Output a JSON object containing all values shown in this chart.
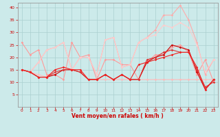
{
  "background_color": "#cceaea",
  "grid_color": "#aacfcf",
  "xlabel": "Vent moyen/en rafales ( km/h )",
  "xlabel_color": "#cc0000",
  "tick_color": "#cc0000",
  "xlim": [
    -0.5,
    23.5
  ],
  "ylim": [
    0,
    42
  ],
  "yticks": [
    5,
    10,
    15,
    20,
    25,
    30,
    35,
    40
  ],
  "xticks": [
    0,
    1,
    2,
    3,
    4,
    5,
    6,
    7,
    8,
    9,
    10,
    11,
    12,
    13,
    14,
    15,
    16,
    17,
    18,
    19,
    20,
    21,
    22,
    23
  ],
  "lines": [
    {
      "x": [
        0,
        1,
        2,
        3,
        4,
        5,
        6,
        7,
        8,
        9,
        10,
        11,
        12,
        13,
        14,
        15,
        16,
        17,
        18,
        19,
        20,
        21,
        22,
        23
      ],
      "y": [
        26,
        21,
        23,
        13,
        13,
        11,
        26,
        20,
        21,
        11,
        19,
        19,
        17,
        17,
        11,
        18,
        21,
        21,
        24,
        25,
        22,
        13,
        19,
        10
      ],
      "color": "#ff9999",
      "linewidth": 0.8
    },
    {
      "x": [
        0,
        1,
        2,
        3,
        4,
        5,
        6,
        7,
        8,
        9,
        10,
        11,
        12,
        13,
        14,
        15,
        16,
        17,
        18,
        19,
        20,
        21,
        22,
        23
      ],
      "y": [
        15,
        14,
        13,
        12,
        15,
        16,
        15,
        15,
        11,
        11,
        11,
        11,
        11,
        11,
        11,
        11,
        11,
        11,
        11,
        11,
        11,
        11,
        11,
        11
      ],
      "color": "#ffbbbb",
      "linewidth": 0.8
    },
    {
      "x": [
        0,
        1,
        2,
        3,
        4,
        5,
        6,
        7,
        8,
        9,
        10,
        11,
        12,
        13,
        14,
        15,
        16,
        17,
        18,
        19,
        20,
        21,
        22,
        23
      ],
      "y": [
        15,
        14,
        18,
        23,
        24,
        26,
        15,
        20,
        20,
        13,
        27,
        28,
        16,
        17,
        26,
        28,
        31,
        37,
        37,
        41,
        35,
        26,
        13,
        19
      ],
      "color": "#ffaaaa",
      "linewidth": 0.8
    },
    {
      "x": [
        0,
        1,
        2,
        3,
        4,
        5,
        6,
        7,
        8,
        9,
        10,
        11,
        12,
        13,
        14,
        15,
        16,
        17,
        18,
        19,
        20,
        21,
        22,
        23
      ],
      "y": [
        15,
        14,
        18,
        23,
        24,
        26,
        15,
        20,
        20,
        13,
        27,
        28,
        16,
        17,
        26,
        28,
        29,
        33,
        32,
        34,
        32,
        25,
        14,
        19
      ],
      "color": "#ffcccc",
      "linewidth": 0.8
    },
    {
      "x": [
        0,
        1,
        2,
        3,
        4,
        5,
        6,
        7,
        8,
        9,
        10,
        11,
        12,
        13,
        14,
        15,
        16,
        17,
        18,
        19,
        20,
        21,
        22,
        23
      ],
      "y": [
        15,
        14,
        12,
        12,
        13,
        15,
        15,
        14,
        11,
        11,
        13,
        11,
        13,
        11,
        11,
        18,
        20,
        21,
        25,
        24,
        23,
        14,
        7,
        11
      ],
      "color": "#cc0000",
      "linewidth": 0.8
    },
    {
      "x": [
        0,
        1,
        2,
        3,
        4,
        5,
        6,
        7,
        8,
        9,
        10,
        11,
        12,
        13,
        14,
        15,
        16,
        17,
        18,
        19,
        20,
        21,
        22,
        23
      ],
      "y": [
        15,
        14,
        12,
        12,
        14,
        15,
        15,
        14,
        11,
        11,
        13,
        11,
        13,
        11,
        11,
        19,
        20,
        22,
        23,
        22,
        22,
        15,
        8,
        10
      ],
      "color": "#dd3333",
      "linewidth": 0.8
    },
    {
      "x": [
        0,
        1,
        2,
        3,
        4,
        5,
        6,
        7,
        8,
        9,
        10,
        11,
        12,
        13,
        14,
        15,
        16,
        17,
        18,
        19,
        20,
        21,
        22,
        23
      ],
      "y": [
        15,
        14,
        12,
        12,
        15,
        16,
        15,
        15,
        11,
        11,
        13,
        11,
        13,
        11,
        17,
        18,
        19,
        20,
        21,
        22,
        22,
        16,
        7,
        11
      ],
      "color": "#ee2222",
      "linewidth": 0.8
    }
  ]
}
